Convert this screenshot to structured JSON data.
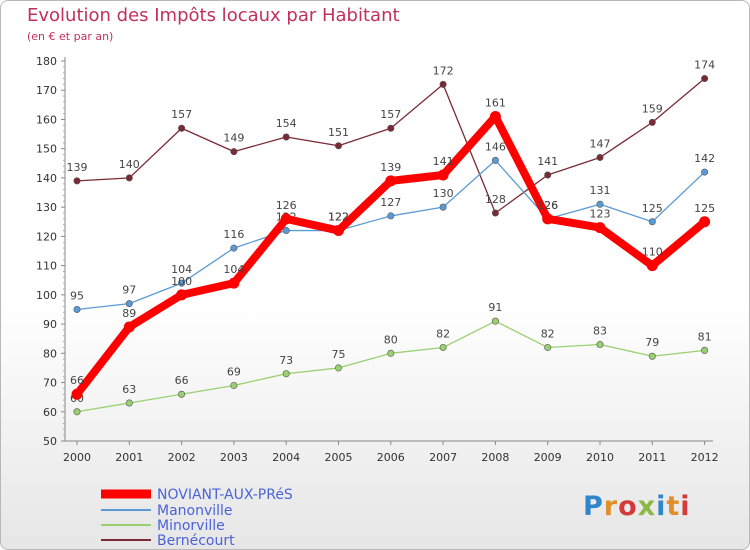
{
  "chart_data": {
    "type": "line",
    "title": "Evolution des Impôts locaux par Habitant",
    "subtitle": "(en € et par an)",
    "x": [
      "2000",
      "2001",
      "2002",
      "2003",
      "2004",
      "2005",
      "2006",
      "2007",
      "2008",
      "2009",
      "2010",
      "2011",
      "2012"
    ],
    "ylim": [
      50,
      180
    ],
    "yticks": [
      50,
      60,
      70,
      80,
      90,
      100,
      110,
      120,
      130,
      140,
      150,
      160,
      170,
      180
    ],
    "grid": false,
    "legend_position": "bottom-left",
    "series": [
      {
        "name": "Bernécourt",
        "color": "#7a2a35",
        "values": [
          139,
          140,
          157,
          149,
          154,
          151,
          157,
          172,
          128,
          141,
          147,
          159,
          174
        ]
      },
      {
        "name": "Minorville",
        "color": "#99d070",
        "values": [
          60,
          63,
          66,
          69,
          73,
          75,
          80,
          82,
          91,
          82,
          83,
          79,
          81
        ]
      },
      {
        "name": "Manonville",
        "color": "#5b9bd5",
        "values": [
          95,
          97,
          104,
          116,
          122,
          122,
          127,
          130,
          146,
          126,
          131,
          125,
          142
        ]
      },
      {
        "name": "NOVIANT-AUX-PRéS",
        "color": "#ff0000",
        "values": [
          66,
          89,
          100,
          104,
          126,
          122,
          139,
          141,
          161,
          126,
          123,
          110,
          125
        ]
      }
    ],
    "legend": [
      "NOVIANT-AUX-PRéS",
      "Manonville",
      "Minorville",
      "Bernécourt"
    ]
  },
  "logo": {
    "text": [
      "P",
      "r",
      "o",
      "x",
      "i",
      "t",
      "i"
    ]
  }
}
